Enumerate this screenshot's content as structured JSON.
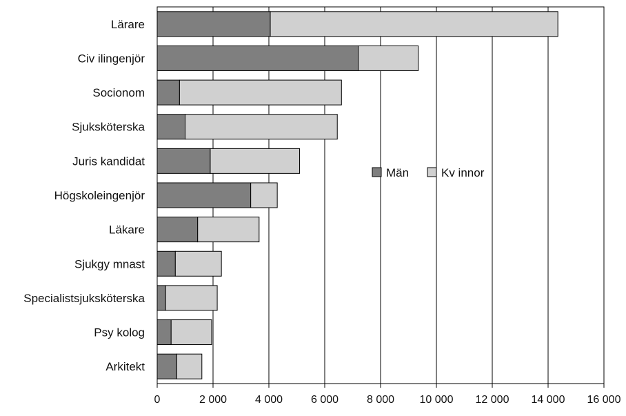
{
  "chart_data": {
    "type": "bar",
    "orientation": "horizontal",
    "stacked": true,
    "categories": [
      "Lärare",
      "Civ ilingenjör",
      "Socionom",
      "Sjuksköterska",
      "Juris kandidat",
      "Högskoleingenjör",
      "Läkare",
      "Sjukgy mnast",
      "Specialistsjuksköterska",
      "Psy kolog",
      "Arkitekt"
    ],
    "series": [
      {
        "name": "Män",
        "color": "#7f7f7f",
        "values": [
          4050,
          7200,
          800,
          1000,
          1900,
          3350,
          1450,
          650,
          300,
          500,
          700
        ]
      },
      {
        "name": "Kv innor",
        "color": "#d0d0d0",
        "values": [
          10300,
          2150,
          5800,
          5450,
          3200,
          950,
          2200,
          1650,
          1850,
          1450,
          900
        ]
      }
    ],
    "xlim": [
      0,
      16000
    ],
    "xticks": [
      0,
      2000,
      4000,
      6000,
      8000,
      10000,
      12000,
      14000,
      16000
    ],
    "xtick_labels": [
      "0",
      "2 000",
      "4 000",
      "6 000",
      "8 000",
      "10 000",
      "12 000",
      "14 000",
      "16 000"
    ],
    "grid": "vertical",
    "legend_position": "center-right",
    "title": "",
    "xlabel": "",
    "ylabel": ""
  }
}
